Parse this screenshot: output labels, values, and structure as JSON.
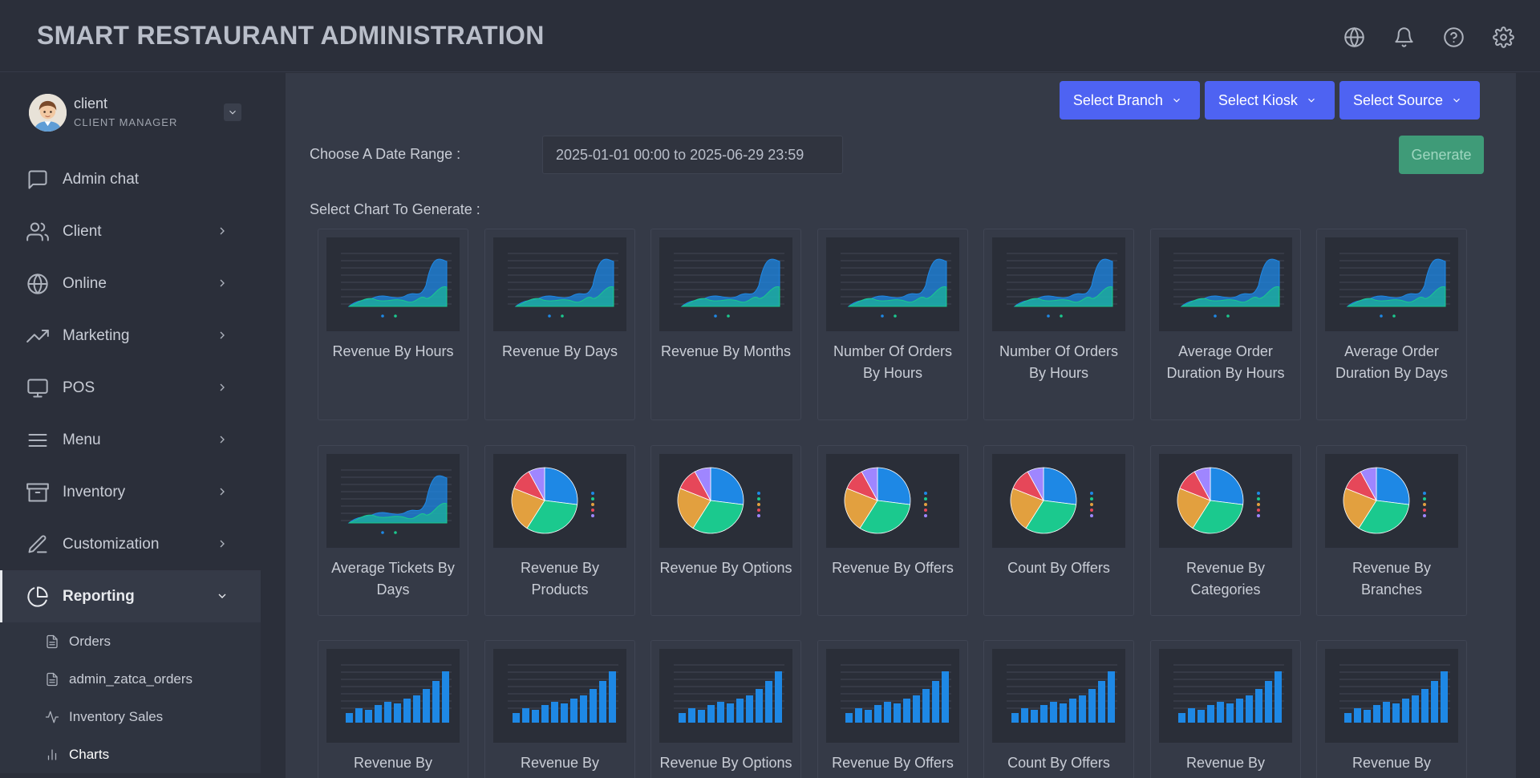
{
  "app": {
    "title": "SMART RESTAURANT ADMINISTRATION"
  },
  "header": {
    "icons": [
      "globe-icon",
      "bell-icon",
      "help-icon",
      "gear-icon"
    ]
  },
  "user": {
    "name": "client",
    "role": "CLIENT MANAGER"
  },
  "sidebar": {
    "items": [
      {
        "label": "Admin chat",
        "icon": "chat-icon",
        "has_children": false
      },
      {
        "label": "Client",
        "icon": "users-icon",
        "has_children": true
      },
      {
        "label": "Online",
        "icon": "globe-icon",
        "has_children": true
      },
      {
        "label": "Marketing",
        "icon": "trending-icon",
        "has_children": true
      },
      {
        "label": "POS",
        "icon": "monitor-icon",
        "has_children": true
      },
      {
        "label": "Menu",
        "icon": "menu-icon",
        "has_children": true
      },
      {
        "label": "Inventory",
        "icon": "archive-icon",
        "has_children": true
      },
      {
        "label": "Customization",
        "icon": "pen-icon",
        "has_children": true
      },
      {
        "label": "Reporting",
        "icon": "pie-chart-icon",
        "has_children": true,
        "expanded": true
      }
    ],
    "subitems": [
      {
        "label": "Orders",
        "icon": "document-icon"
      },
      {
        "label": "admin_zatca_orders",
        "icon": "document-icon"
      },
      {
        "label": "Inventory Sales",
        "icon": "activity-icon"
      },
      {
        "label": "Charts",
        "icon": "bar-chart-icon",
        "active": true
      }
    ]
  },
  "filters": {
    "branch_label": "Select Branch",
    "kiosk_label": "Select Kiosk",
    "source_label": "Select Source",
    "date_label": "Choose A Date Range :",
    "date_value": "2025-01-01 00:00 to 2025-06-29 23:59",
    "generate_label": "Generate",
    "select_chart_label": "Select Chart To Generate :"
  },
  "charts": [
    {
      "label": "Revenue By Hours",
      "thumb": "area"
    },
    {
      "label": "Revenue By Days",
      "thumb": "area"
    },
    {
      "label": "Revenue By Months",
      "thumb": "area"
    },
    {
      "label": "Number Of Orders By Hours",
      "thumb": "area"
    },
    {
      "label": "Number Of Orders By Hours",
      "thumb": "area"
    },
    {
      "label": "Average Order Duration By Hours",
      "thumb": "area"
    },
    {
      "label": "Average Order Duration By Days",
      "thumb": "area"
    },
    {
      "label": "Average Tickets By Days",
      "thumb": "area"
    },
    {
      "label": "Revenue By Products",
      "thumb": "pie"
    },
    {
      "label": "Revenue By Options",
      "thumb": "pie"
    },
    {
      "label": "Revenue By Offers",
      "thumb": "pie"
    },
    {
      "label": "Count By Offers",
      "thumb": "pie"
    },
    {
      "label": "Revenue By Categories",
      "thumb": "pie"
    },
    {
      "label": "Revenue By Branches",
      "thumb": "pie"
    },
    {
      "label": "Revenue By Products",
      "thumb": "bar"
    },
    {
      "label": "Revenue By Products",
      "thumb": "bar"
    },
    {
      "label": "Revenue By Options",
      "thumb": "bar"
    },
    {
      "label": "Revenue By Offers",
      "thumb": "bar"
    },
    {
      "label": "Count By Offers",
      "thumb": "bar"
    },
    {
      "label": "Revenue By Categories",
      "thumb": "bar"
    },
    {
      "label": "Revenue By Branches",
      "thumb": "bar"
    }
  ],
  "colors": {
    "accent": "#4e63f2",
    "generate": "#3f9b78",
    "chart_blue": "#1e88e5",
    "chart_green": "#1bc98e",
    "chart_orange": "#e2a03f",
    "chart_red": "#e64759",
    "chart_purple": "#9f86ff"
  }
}
